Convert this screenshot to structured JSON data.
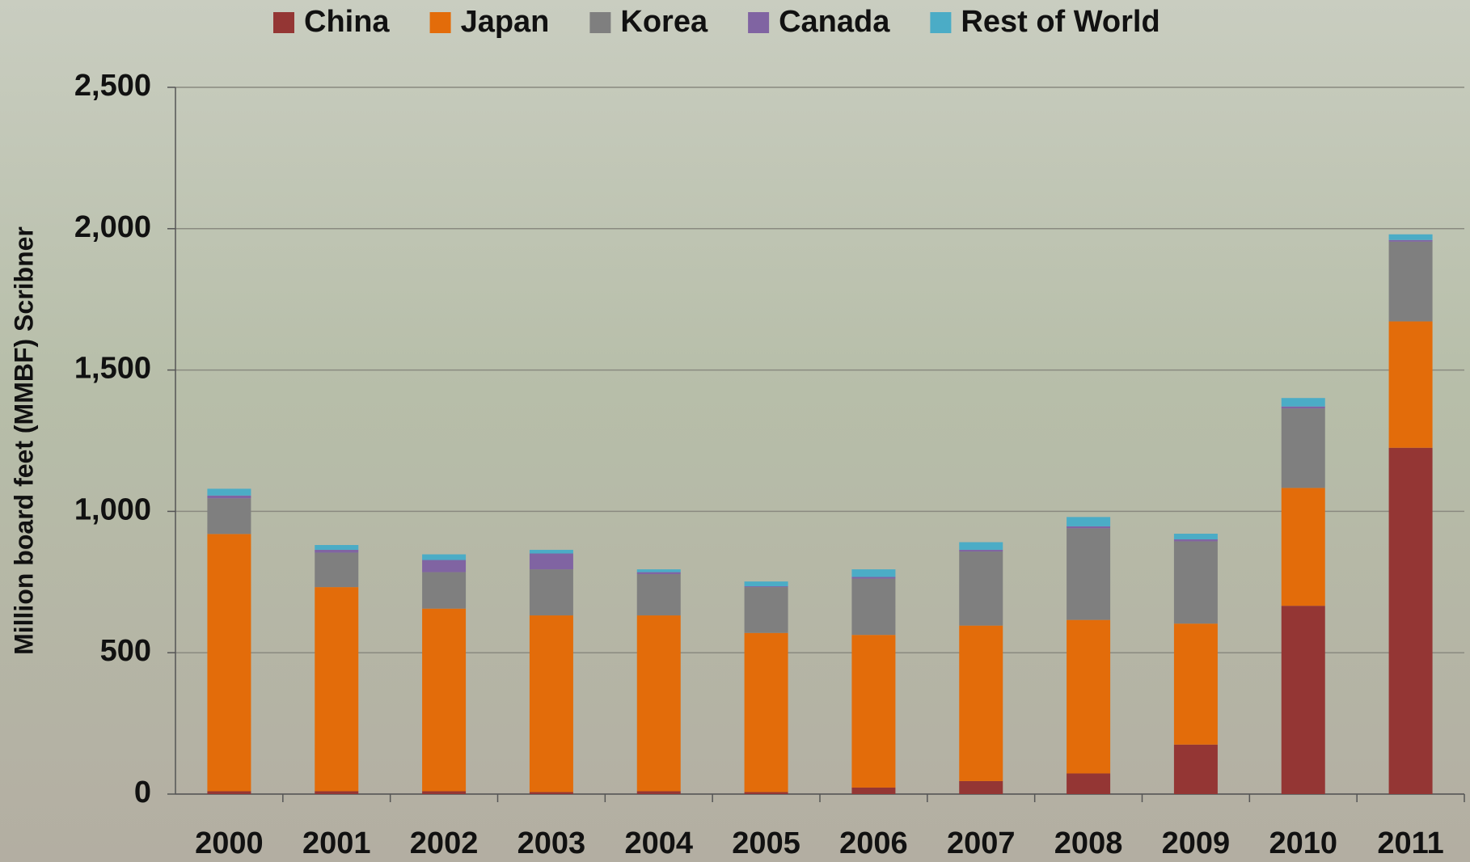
{
  "chart_data": {
    "type": "stacked_bar",
    "y_label": "Million board feet (MMBF) Scribner",
    "categories": [
      "2000",
      "2001",
      "2002",
      "2003",
      "2004",
      "2005",
      "2006",
      "2007",
      "2008",
      "2009",
      "2010",
      "2011"
    ],
    "series": [
      {
        "name": "China",
        "color": "#943634",
        "values": [
          10,
          10,
          10,
          7,
          10,
          7,
          23,
          46,
          73,
          175,
          666,
          1225
        ]
      },
      {
        "name": "Japan",
        "color": "#e36c0a",
        "values": [
          910,
          722,
          646,
          625,
          622,
          563,
          540,
          550,
          543,
          428,
          417,
          447
        ]
      },
      {
        "name": "Korea",
        "color": "#7f7f7f",
        "values": [
          126,
          122,
          129,
          163,
          146,
          162,
          199,
          262,
          324,
          291,
          281,
          282
        ]
      },
      {
        "name": "Canada",
        "color": "#8064a2",
        "values": [
          10,
          10,
          43,
          56,
          7,
          3,
          6,
          6,
          7,
          7,
          7,
          6
        ]
      },
      {
        "name": "Rest of World",
        "color": "#4bacc6",
        "values": [
          24,
          17,
          20,
          13,
          10,
          17,
          27,
          27,
          33,
          20,
          30,
          20
        ]
      }
    ],
    "ylim": [
      0,
      2500
    ],
    "yticks": [
      0,
      500,
      {
        "value": 1000,
        "label": "1,000"
      },
      {
        "value": 1500,
        "label": "1,500"
      },
      {
        "value": 2000,
        "label": "2,000"
      },
      {
        "value": 2500,
        "label": "2,500"
      }
    ],
    "grid": true
  }
}
